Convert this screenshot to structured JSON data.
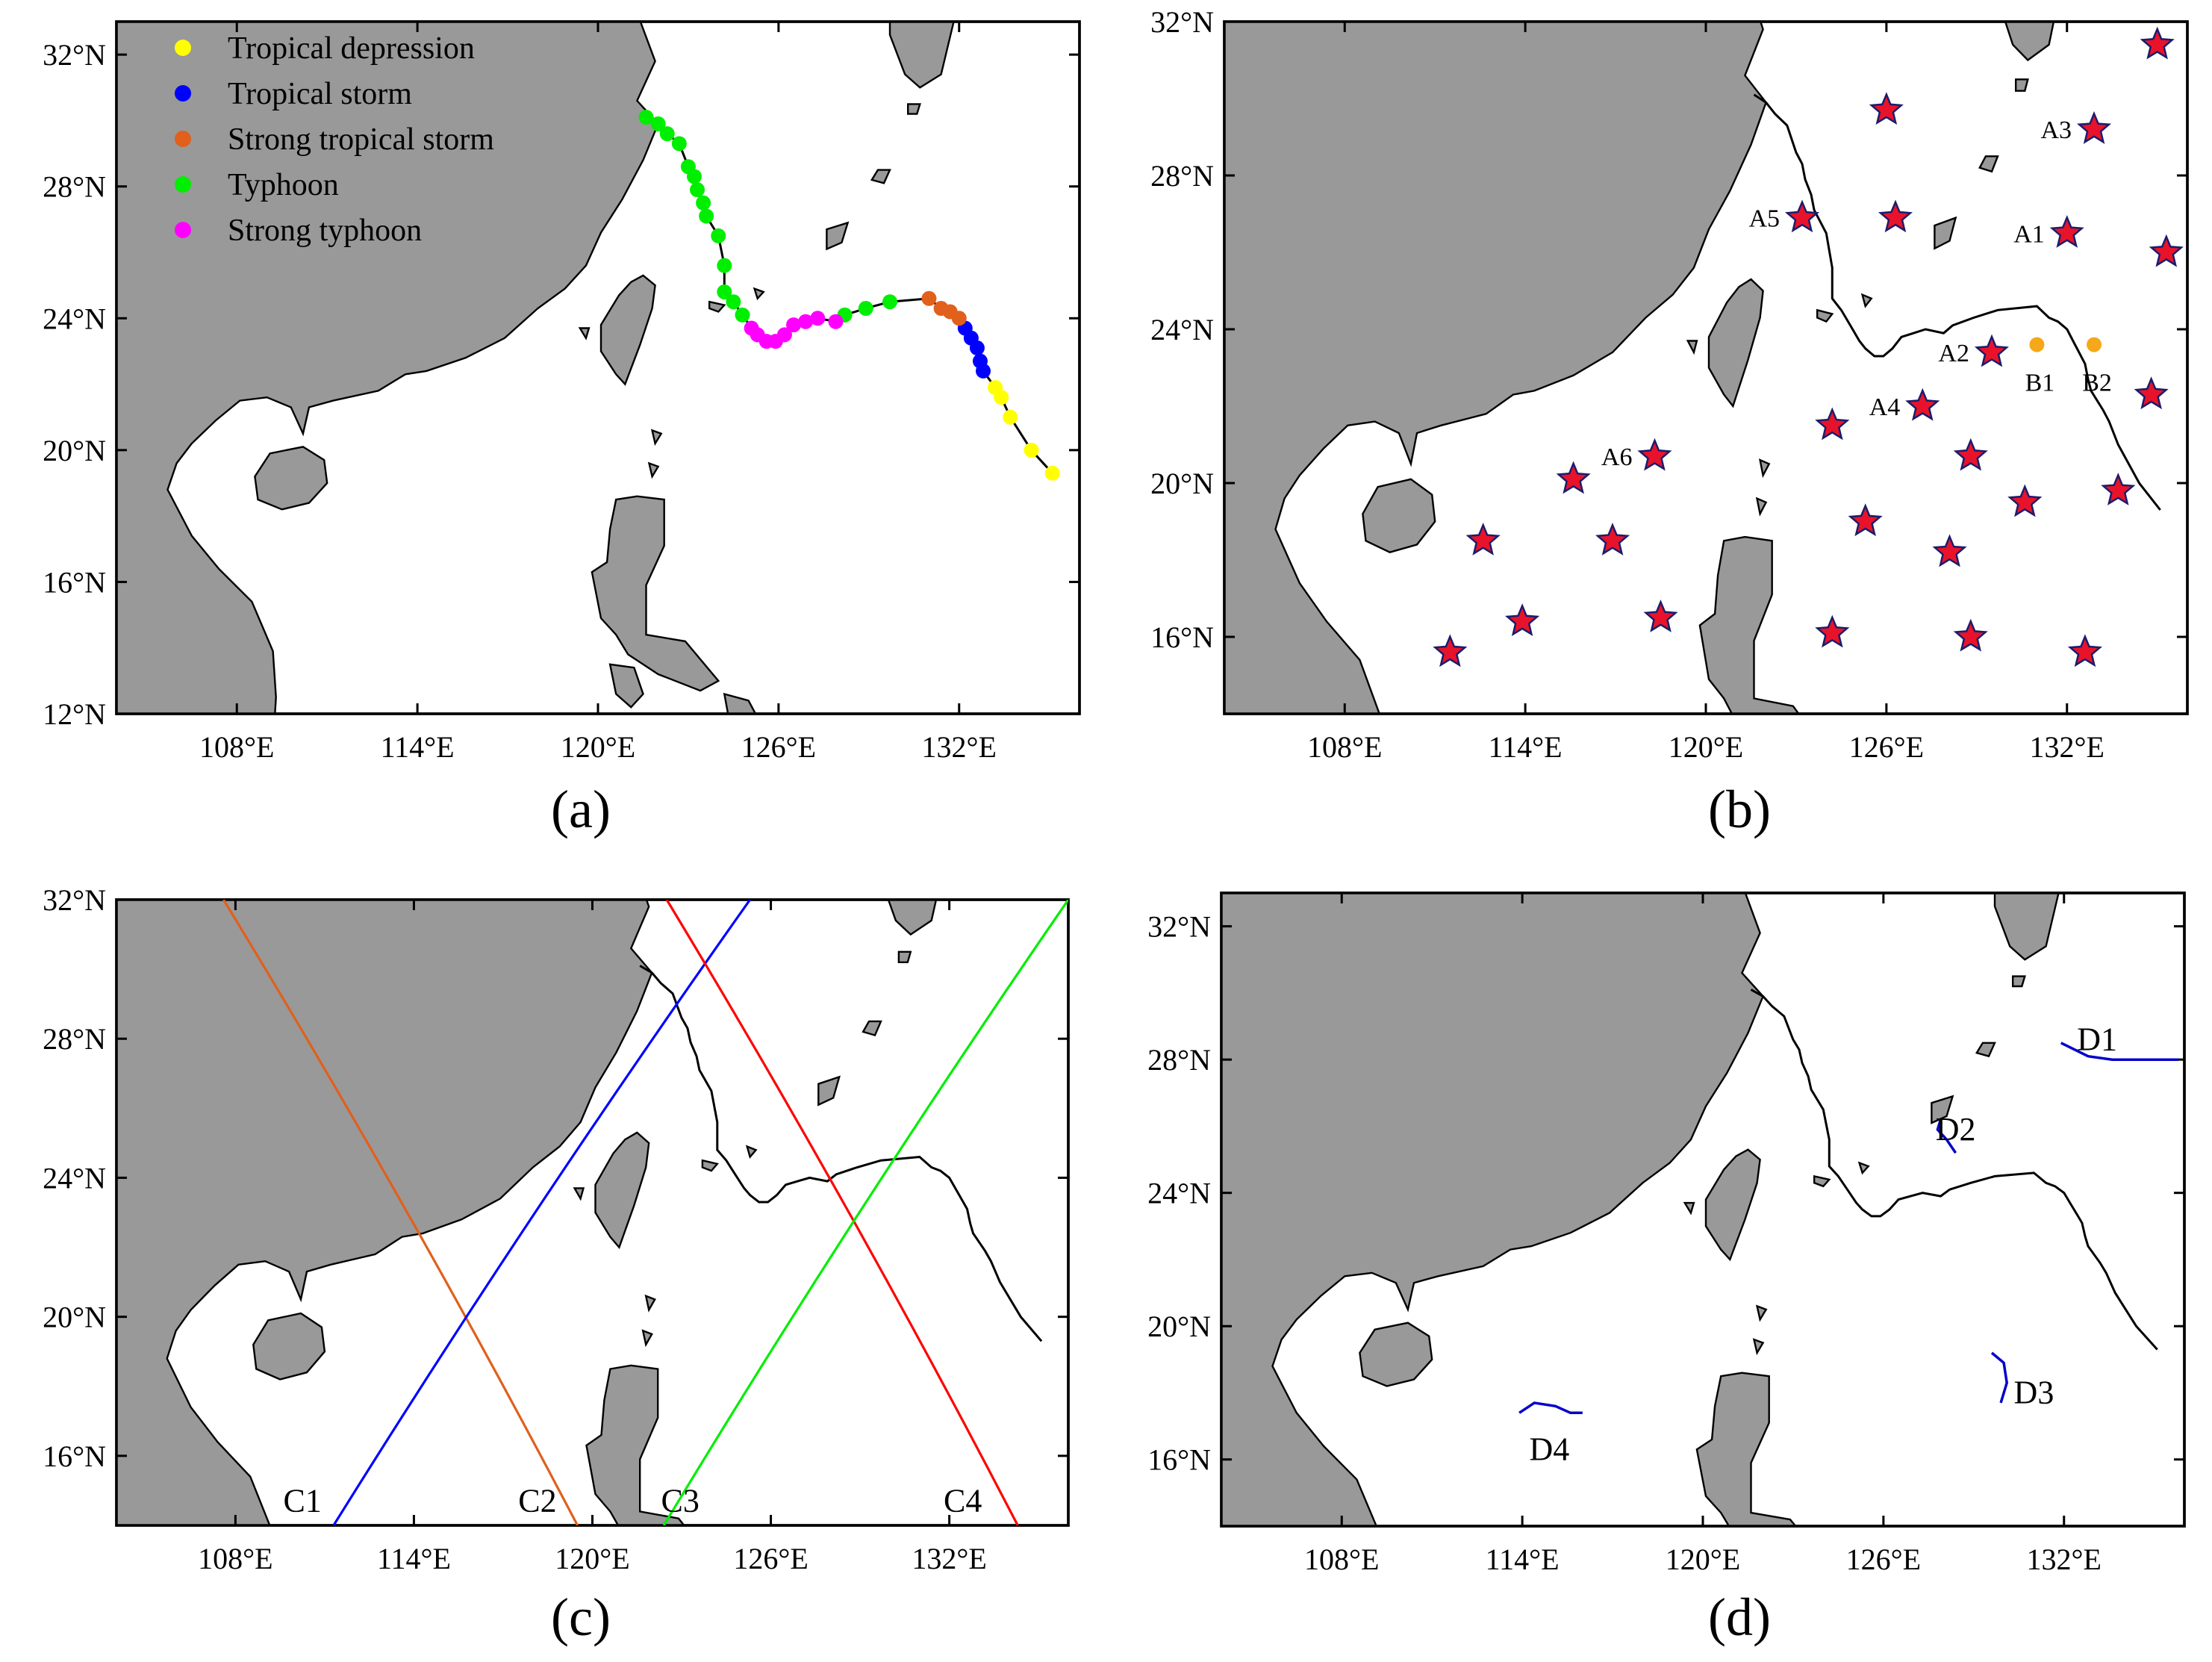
{
  "panels": [
    {
      "id": "a",
      "letter": "(a)",
      "lon_ticks": [
        "108°E",
        "114°E",
        "120°E",
        "126°E",
        "132°E"
      ],
      "lat_ticks": [
        "32°N",
        "28°N",
        "24°N",
        "20°N",
        "16°N",
        "12°N"
      ],
      "lat_range": [
        12,
        33
      ],
      "legend": [
        {
          "label": "Tropical depression",
          "color": "#ffff00"
        },
        {
          "label": "Tropical storm",
          "color": "#0000ff"
        },
        {
          "label": "Strong tropical storm",
          "color": "#e0601c"
        },
        {
          "label": "Typhoon",
          "color": "#00ee00"
        },
        {
          "label": "Strong typhoon",
          "color": "#ff00ff"
        }
      ]
    },
    {
      "id": "b",
      "letter": "(b)",
      "lon_ticks": [
        "108°E",
        "114°E",
        "120°E",
        "126°E",
        "132°E"
      ],
      "lat_ticks": [
        "32°N",
        "28°N",
        "24°N",
        "20°N",
        "16°N"
      ],
      "lat_range": [
        14,
        32
      ],
      "station_labels": [
        "A1",
        "A2",
        "A3",
        "A4",
        "A5",
        "A6",
        "B1",
        "B2"
      ]
    },
    {
      "id": "c",
      "letter": "(c)",
      "lon_ticks": [
        "108°E",
        "114°E",
        "120°E",
        "126°E",
        "132°E"
      ],
      "lat_ticks": [
        "32°N",
        "28°N",
        "24°N",
        "20°N",
        "16°N"
      ],
      "lat_range": [
        14,
        32
      ],
      "track_labels": [
        "C1",
        "C2",
        "C3",
        "C4"
      ]
    },
    {
      "id": "d",
      "letter": "(d)",
      "lon_ticks": [
        "108°E",
        "114°E",
        "120°E",
        "126°E",
        "132°E"
      ],
      "lat_ticks": [
        "32°N",
        "28°N",
        "24°N",
        "20°N",
        "16°N"
      ],
      "lat_range": [
        14,
        33
      ],
      "drifter_labels": [
        "D1",
        "D2",
        "D3",
        "D4"
      ]
    }
  ],
  "colors": {
    "land": "#999999",
    "ocean": "#ffffff",
    "best_track": "#000000",
    "star": "#e8132a",
    "buoy": "#f5a81a",
    "track_c1": "#e0601c",
    "track_c2": "#0000ff",
    "track_c3": "#ff0000",
    "track_c4": "#00ee00",
    "drifter": "#0000cc"
  },
  "map_data": {
    "lon_range": [
      104,
      136
    ],
    "typhoon_track": [
      {
        "lon": 135.1,
        "lat": 19.3,
        "cat": 0
      },
      {
        "lon": 134.4,
        "lat": 20.0,
        "cat": 0
      },
      {
        "lon": 133.7,
        "lat": 21.0,
        "cat": 0
      },
      {
        "lon": 133.4,
        "lat": 21.6,
        "cat": 0
      },
      {
        "lon": 133.2,
        "lat": 21.9,
        "cat": 0
      },
      {
        "lon": 132.8,
        "lat": 22.4,
        "cat": 1
      },
      {
        "lon": 132.7,
        "lat": 22.7,
        "cat": 1
      },
      {
        "lon": 132.6,
        "lat": 23.1,
        "cat": 1
      },
      {
        "lon": 132.4,
        "lat": 23.4,
        "cat": 1
      },
      {
        "lon": 132.2,
        "lat": 23.7,
        "cat": 1
      },
      {
        "lon": 132.0,
        "lat": 24.0,
        "cat": 2
      },
      {
        "lon": 131.7,
        "lat": 24.2,
        "cat": 2
      },
      {
        "lon": 131.4,
        "lat": 24.3,
        "cat": 2
      },
      {
        "lon": 131.0,
        "lat": 24.6,
        "cat": 2
      },
      {
        "lon": 129.7,
        "lat": 24.5,
        "cat": 3
      },
      {
        "lon": 128.9,
        "lat": 24.3,
        "cat": 3
      },
      {
        "lon": 128.2,
        "lat": 24.1,
        "cat": 3
      },
      {
        "lon": 127.9,
        "lat": 23.9,
        "cat": 4
      },
      {
        "lon": 127.3,
        "lat": 24.0,
        "cat": 4
      },
      {
        "lon": 126.9,
        "lat": 23.9,
        "cat": 4
      },
      {
        "lon": 126.5,
        "lat": 23.8,
        "cat": 4
      },
      {
        "lon": 126.2,
        "lat": 23.5,
        "cat": 4
      },
      {
        "lon": 125.9,
        "lat": 23.3,
        "cat": 4
      },
      {
        "lon": 125.6,
        "lat": 23.3,
        "cat": 4
      },
      {
        "lon": 125.3,
        "lat": 23.5,
        "cat": 4
      },
      {
        "lon": 125.1,
        "lat": 23.7,
        "cat": 4
      },
      {
        "lon": 124.8,
        "lat": 24.1,
        "cat": 3
      },
      {
        "lon": 124.5,
        "lat": 24.5,
        "cat": 3
      },
      {
        "lon": 124.2,
        "lat": 24.8,
        "cat": 3
      },
      {
        "lon": 124.2,
        "lat": 25.6,
        "cat": 3
      },
      {
        "lon": 124.0,
        "lat": 26.5,
        "cat": 3
      },
      {
        "lon": 123.6,
        "lat": 27.1,
        "cat": 3
      },
      {
        "lon": 123.5,
        "lat": 27.5,
        "cat": 3
      },
      {
        "lon": 123.3,
        "lat": 27.9,
        "cat": 3
      },
      {
        "lon": 123.2,
        "lat": 28.3,
        "cat": 3
      },
      {
        "lon": 123.0,
        "lat": 28.6,
        "cat": 3
      },
      {
        "lon": 122.7,
        "lat": 29.3,
        "cat": 3
      },
      {
        "lon": 122.3,
        "lat": 29.6,
        "cat": 3
      },
      {
        "lon": 122.0,
        "lat": 29.9,
        "cat": 3
      },
      {
        "lon": 121.6,
        "lat": 30.1,
        "cat": 3
      }
    ],
    "stations": [
      {
        "label": "",
        "lon": 135.0,
        "lat": 31.4
      },
      {
        "label": "A3",
        "lon": 132.9,
        "lat": 29.2
      },
      {
        "label": "",
        "lon": 126.0,
        "lat": 29.7
      },
      {
        "label": "A5",
        "lon": 123.2,
        "lat": 26.9
      },
      {
        "label": "",
        "lon": 126.3,
        "lat": 26.9
      },
      {
        "label": "A1",
        "lon": 132.0,
        "lat": 26.5
      },
      {
        "label": "",
        "lon": 135.3,
        "lat": 26.0
      },
      {
        "label": "A2",
        "lon": 129.5,
        "lat": 23.4
      },
      {
        "label": "",
        "lon": 134.8,
        "lat": 22.3
      },
      {
        "label": "A4",
        "lon": 127.2,
        "lat": 22.0
      },
      {
        "label": "",
        "lon": 124.2,
        "lat": 21.5
      },
      {
        "label": "A6",
        "lon": 118.3,
        "lat": 20.7
      },
      {
        "label": "",
        "lon": 115.6,
        "lat": 20.1
      },
      {
        "label": "",
        "lon": 128.8,
        "lat": 20.7
      },
      {
        "label": "",
        "lon": 130.6,
        "lat": 19.5
      },
      {
        "label": "",
        "lon": 133.7,
        "lat": 19.8
      },
      {
        "label": "",
        "lon": 125.3,
        "lat": 19.0
      },
      {
        "label": "",
        "lon": 112.6,
        "lat": 18.5
      },
      {
        "label": "",
        "lon": 116.9,
        "lat": 18.5
      },
      {
        "label": "",
        "lon": 128.1,
        "lat": 18.2
      },
      {
        "label": "",
        "lon": 113.9,
        "lat": 16.4
      },
      {
        "label": "",
        "lon": 118.5,
        "lat": 16.5
      },
      {
        "label": "",
        "lon": 124.2,
        "lat": 16.1
      },
      {
        "label": "",
        "lon": 128.8,
        "lat": 16.0
      },
      {
        "label": "",
        "lon": 111.5,
        "lat": 15.6
      },
      {
        "label": "",
        "lon": 132.6,
        "lat": 15.6
      }
    ],
    "buoys": [
      {
        "label": "B1",
        "lon": 131.0,
        "lat": 23.6
      },
      {
        "label": "B2",
        "lon": 132.9,
        "lat": 23.6
      }
    ],
    "altimeter_tracks": [
      {
        "label": "C1",
        "from": {
          "lon": 107.6,
          "lat": 32.0
        },
        "to": {
          "lon": 119.5,
          "lat": 14.0
        }
      },
      {
        "label": "C2",
        "from": {
          "lon": 111.3,
          "lat": 14.0
        },
        "to": {
          "lon": 125.3,
          "lat": 32.0
        }
      },
      {
        "label": "C3",
        "from": {
          "lon": 122.5,
          "lat": 32.0
        },
        "to": {
          "lon": 134.3,
          "lat": 14.0
        }
      },
      {
        "label": "C4",
        "from": {
          "lon": 122.4,
          "lat": 14.0
        },
        "to": {
          "lon": 136.0,
          "lat": 32.0
        }
      }
    ],
    "drifters": [
      {
        "label": "D1",
        "path": [
          {
            "lon": 131.9,
            "lat": 28.5
          },
          {
            "lon": 132.8,
            "lat": 28.1
          },
          {
            "lon": 133.6,
            "lat": 28.0
          },
          {
            "lon": 134.4,
            "lat": 28.0
          },
          {
            "lon": 135.8,
            "lat": 28.0
          }
        ]
      },
      {
        "label": "D2",
        "path": [
          {
            "lon": 127.9,
            "lat": 26.2
          },
          {
            "lon": 127.8,
            "lat": 25.9
          },
          {
            "lon": 128.1,
            "lat": 25.6
          },
          {
            "lon": 128.4,
            "lat": 25.2
          }
        ]
      },
      {
        "label": "D3",
        "path": [
          {
            "lon": 129.6,
            "lat": 19.2
          },
          {
            "lon": 130.0,
            "lat": 18.9
          },
          {
            "lon": 130.1,
            "lat": 18.3
          },
          {
            "lon": 129.9,
            "lat": 17.7
          }
        ]
      },
      {
        "label": "D4",
        "path": [
          {
            "lon": 113.9,
            "lat": 17.4
          },
          {
            "lon": 114.4,
            "lat": 17.7
          },
          {
            "lon": 115.1,
            "lat": 17.6
          },
          {
            "lon": 115.6,
            "lat": 17.4
          },
          {
            "lon": 116.0,
            "lat": 17.4
          }
        ]
      }
    ]
  }
}
